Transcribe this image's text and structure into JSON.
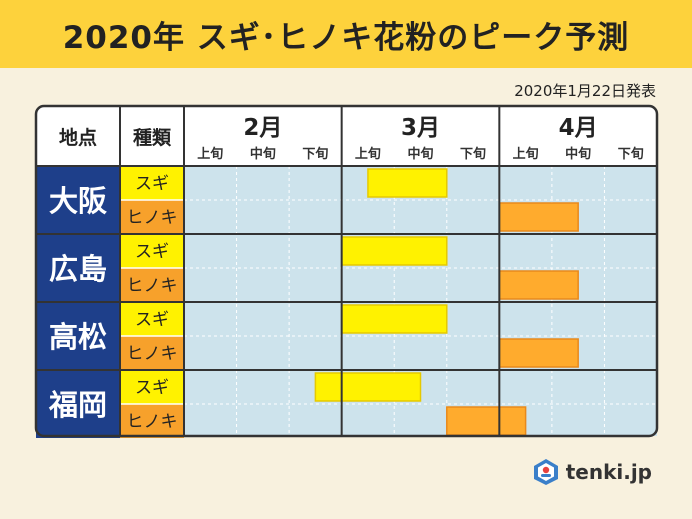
{
  "title": "2020年 スギ･ヒノキ花粉のピーク予測",
  "announce_date": "2020年1月22日発表",
  "headers": {
    "location": "地点",
    "type": "種類"
  },
  "brand": "tenki.jp",
  "colors": {
    "header_bg": "#fdd23c",
    "location_bg": "#1e3f8a",
    "sugi_label": "#fff200",
    "hinoki_label": "#f7a12b",
    "sugi_bar": "#fff200",
    "hinoki_bar": "#ffab2d",
    "grid_bg": "#cde3ec",
    "page_bg": "#f8f1de"
  },
  "chart_data": {
    "type": "gantt",
    "months": [
      "2月",
      "3月",
      "4月"
    ],
    "periods": [
      "上旬",
      "中旬",
      "下旬"
    ],
    "types": [
      "スギ",
      "ヒノキ"
    ],
    "rows": [
      {
        "location": "大阪",
        "sugi": {
          "start": 3.5,
          "end": 5
        },
        "hinoki": {
          "start": 6,
          "end": 7.5
        }
      },
      {
        "location": "広島",
        "sugi": {
          "start": 3,
          "end": 5
        },
        "hinoki": {
          "start": 6,
          "end": 7.5
        }
      },
      {
        "location": "高松",
        "sugi": {
          "start": 3,
          "end": 5
        },
        "hinoki": {
          "start": 6,
          "end": 7.5
        }
      },
      {
        "location": "福岡",
        "sugi": {
          "start": 2.5,
          "end": 4.5
        },
        "hinoki": {
          "start": 5,
          "end": 6.5
        }
      }
    ]
  }
}
